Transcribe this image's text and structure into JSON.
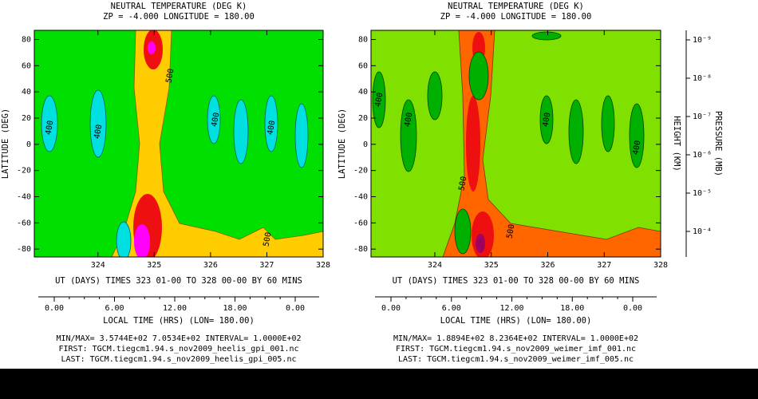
{
  "chart_data": [
    {
      "type": "contour",
      "title": "NEUTRAL TEMPERATURE (DEG K)",
      "subtitle": "ZP =    -4.000 LONGITUDE =    180.00",
      "y_label": "LATITUDE (DEG)",
      "x_label": "UT (DAYS) TIMES 323 01-00 TO 328 00-00 BY     60 MINS",
      "xlim": [
        322.87,
        328
      ],
      "xticks": [
        324,
        325,
        326,
        327,
        328
      ],
      "ylim": [
        -86,
        87
      ],
      "yticks": [
        -80,
        -60,
        -40,
        -20,
        0,
        20,
        40,
        60,
        80
      ],
      "lt_label": "LOCAL TIME (HRS) (LON= 180.00)",
      "lt_ticks": [
        "0.00",
        "6.00",
        "12.00",
        "18.00",
        "0.00"
      ],
      "minmax": "MIN/MAX=   3.5744E+02   7.0534E+02 INTERVAL=   1.0000E+02",
      "first": "FIRST:  TGCM.tiegcm1.94.s_nov2009_heelis_gpi_001.nc",
      "last": "LAST:  TGCM.tiegcm1.94.s_nov2009_heelis_gpi_005.nc",
      "contour_labels": [
        400,
        400,
        500,
        400,
        400,
        500
      ]
    },
    {
      "type": "contour",
      "title": "NEUTRAL TEMPERATURE (DEG K)",
      "subtitle": "ZP =    -4.000 LONGITUDE =    180.00",
      "y_label": "LATITUDE (DEG)",
      "x_label": "UT (DAYS) TIMES 323 01-00 TO 328 00-00 BY     60 MINS",
      "xlim": [
        322.87,
        328
      ],
      "xticks": [
        324,
        325,
        326,
        327,
        328
      ],
      "ylim": [
        -86,
        87
      ],
      "yticks": [
        -80,
        -60,
        -40,
        -20,
        0,
        20,
        40,
        60,
        80
      ],
      "lt_label": "LOCAL TIME (HRS) (LON= 180.00)",
      "lt_ticks": [
        "0.00",
        "6.00",
        "12.00",
        "18.00",
        "0.00"
      ],
      "minmax": "MIN/MAX=   1.8894E+02   8.2364E+02 INTERVAL=   1.0000E+02",
      "first": "FIRST:  TGCM.tiegcm1.94.s_nov2009_weimer_imf_001.nc",
      "last": "LAST:  TGCM.tiegcm1.94.s_nov2009_weimer_imf_005.nc",
      "contour_labels": [
        400,
        400,
        500,
        400,
        500,
        400
      ],
      "right_axis": {
        "labels": [
          "HEIGHT (KM)",
          "PRESSURE (MB)"
        ],
        "ticks": [
          "10⁻⁹",
          "10⁻⁸",
          "10⁻⁷",
          "10⁻⁶",
          "10⁻⁵",
          "10⁻⁴"
        ]
      }
    }
  ]
}
